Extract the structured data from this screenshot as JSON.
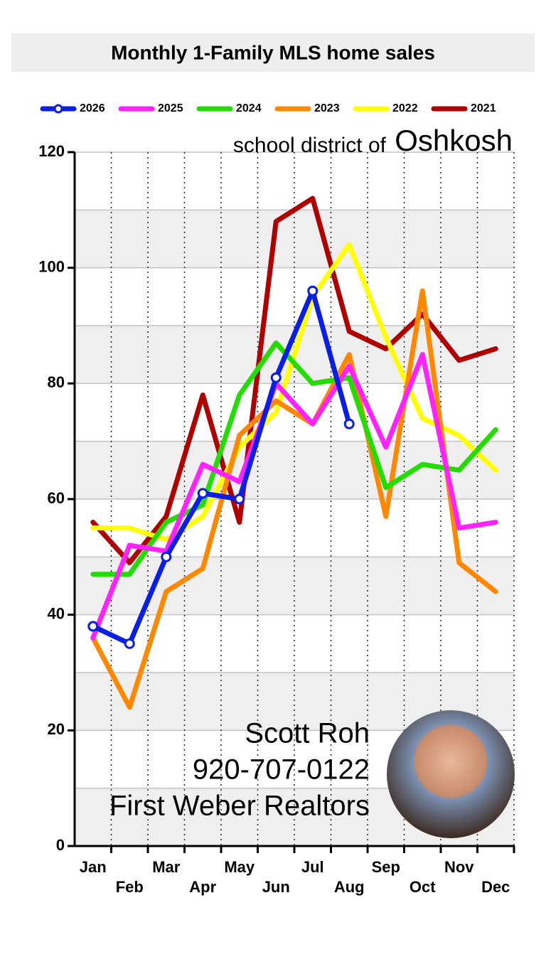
{
  "chart_data": {
    "type": "line",
    "title": "Monthly 1-Family MLS home sales",
    "annotations": [
      "school district of",
      "Oshkosh",
      "Scott Roh",
      "920-707-0122",
      "First Weber Realtors"
    ],
    "categories": [
      "Jan",
      "Feb",
      "Mar",
      "Apr",
      "May",
      "Jun",
      "Jul",
      "Aug",
      "Sep",
      "Oct",
      "Nov",
      "Dec"
    ],
    "series": [
      {
        "name": "2026",
        "color": "#0a1ee6",
        "marker": true,
        "values": [
          38,
          35,
          50,
          61,
          60,
          81,
          96,
          73,
          null,
          null,
          null,
          null
        ]
      },
      {
        "name": "2025",
        "color": "#ff22ff",
        "values": [
          36,
          52,
          51,
          66,
          63,
          80,
          73,
          83,
          69,
          85,
          55,
          56
        ]
      },
      {
        "name": "2024",
        "color": "#22dd00",
        "values": [
          47,
          47,
          56,
          59,
          78,
          87,
          80,
          81,
          62,
          66,
          65,
          72
        ]
      },
      {
        "name": "2023",
        "color": "#ff8800",
        "values": [
          36,
          24,
          44,
          48,
          71,
          77,
          73,
          85,
          57,
          96,
          49,
          44
        ]
      },
      {
        "name": "2022",
        "color": "#ffff00",
        "values": [
          55,
          55,
          53,
          57,
          69,
          75,
          95,
          104,
          88,
          74,
          71,
          65
        ]
      },
      {
        "name": "2021",
        "color": "#b00000",
        "values": [
          56,
          49,
          57,
          78,
          56,
          108,
          112,
          89,
          86,
          92,
          84,
          86
        ]
      }
    ],
    "ylim": [
      0,
      120
    ],
    "yticks": [
      0,
      20,
      40,
      60,
      80,
      100,
      120
    ],
    "yminorticks": [
      10,
      30,
      50,
      70,
      90,
      110
    ],
    "grid": true,
    "legend": "top"
  }
}
